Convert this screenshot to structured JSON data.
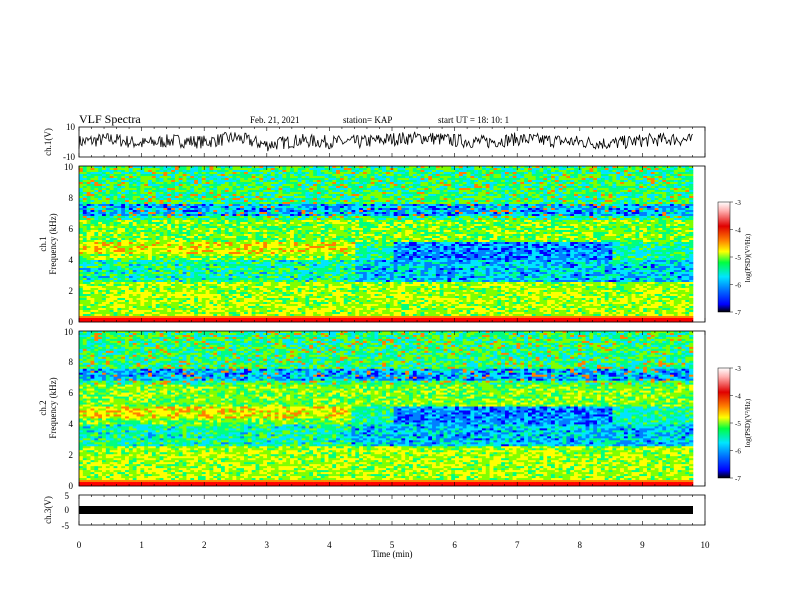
{
  "header": {
    "title": "VLF Spectra",
    "date": "Feb. 21, 2021",
    "station": "station= KAP",
    "start_ut": "start  UT =   18: 10: 1"
  },
  "colors": {
    "spectrogram_scale": [
      "#00007a",
      "#0000ff",
      "#0080ff",
      "#00e5ff",
      "#00ff80",
      "#7fff00",
      "#ffff00",
      "#ff8000",
      "#ff0000",
      "#b00000",
      "#ffd0d0",
      "#ffffff"
    ]
  },
  "chart_data": [
    {
      "type": "line",
      "panel": "ch1",
      "ylabel": "ch.1(V)",
      "ylim": [
        -10,
        10
      ],
      "yticks": [
        "10",
        "-10"
      ],
      "xlim": [
        0,
        10
      ],
      "series": [
        {
          "x_min": [
            0,
            0.5,
            1,
            1.5,
            2,
            2.5,
            3,
            3.5,
            4,
            4.5,
            5,
            5.5,
            6,
            6.5,
            7,
            7.5,
            8,
            8.5,
            9,
            9.5,
            9.8
          ],
          "y_volts": [
            0,
            2,
            -1,
            1,
            0,
            3,
            -2,
            1,
            0,
            0,
            2,
            3,
            1,
            0,
            2,
            1,
            0,
            -1,
            1,
            2,
            1
          ]
        }
      ]
    },
    {
      "type": "heatmap",
      "panel": "ch2_spectrogram",
      "ylabel_line1": "ch.1",
      "ylabel_line2": "Frequency (kHz)",
      "ylim": [
        0,
        10
      ],
      "yticks": [
        "0",
        "2",
        "4",
        "6",
        "8",
        "10"
      ],
      "xlim": [
        0,
        10
      ],
      "colorbar": {
        "label": "log(PSD)(V²/Hz)",
        "ticks": [
          "-3",
          "-4",
          "-5",
          "-6",
          "-7"
        ],
        "range": [
          -7,
          -3
        ]
      }
    },
    {
      "type": "heatmap",
      "panel": "ch2_spectrogram_b",
      "ylabel_line1": "ch.2",
      "ylabel_line2": "Frequency (kHz)",
      "ylim": [
        0,
        10
      ],
      "yticks": [
        "0",
        "2",
        "4",
        "6",
        "8",
        "10"
      ],
      "xlim": [
        0,
        10
      ],
      "colorbar": {
        "label": "log(PSD)(V²/Hz)",
        "ticks": [
          "-3",
          "-4",
          "-5",
          "-6",
          "-7"
        ],
        "range": [
          -7,
          -3
        ]
      }
    },
    {
      "type": "line",
      "panel": "ch3",
      "ylabel": "ch.3(V)",
      "ylim": [
        -5,
        5
      ],
      "yticks": [
        "5",
        "0",
        "-5"
      ],
      "xlim": [
        0,
        10
      ],
      "xlabel": "Time (min)",
      "xticks": [
        "0",
        "1",
        "2",
        "3",
        "4",
        "5",
        "6",
        "7",
        "8",
        "9",
        "10"
      ]
    }
  ]
}
